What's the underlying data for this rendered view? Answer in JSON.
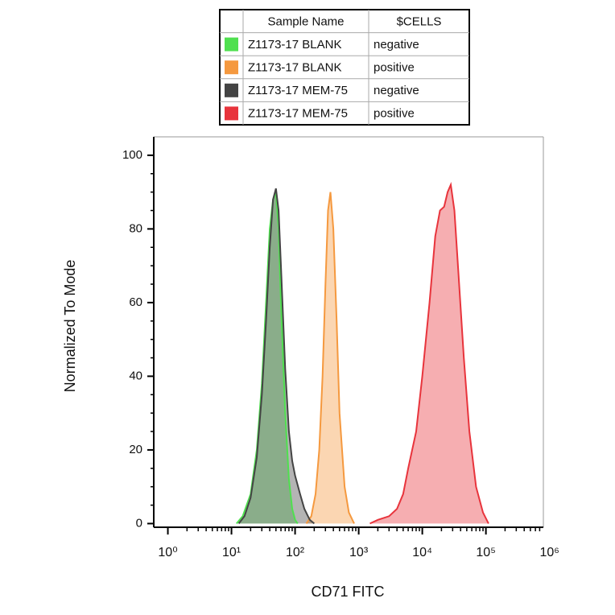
{
  "chart_data": {
    "type": "area",
    "xlabel": "CD71 FITC",
    "ylabel": "Normalized To Mode",
    "legend_headers": [
      "Sample Name",
      "$CELLS"
    ],
    "xscale": "log",
    "xlim": [
      0.6,
      800000
    ],
    "ylim": [
      -1,
      105
    ],
    "xticks": [
      {
        "value": 1,
        "label": "10⁰"
      },
      {
        "value": 10,
        "label": "10¹"
      },
      {
        "value": 100,
        "label": "10²"
      },
      {
        "value": 1000,
        "label": "10³"
      },
      {
        "value": 10000,
        "label": "10⁴"
      },
      {
        "value": 100000,
        "label": "10⁵"
      },
      {
        "value": 1000000,
        "label": "10⁶"
      }
    ],
    "yticks": [
      0,
      20,
      40,
      60,
      80,
      100
    ],
    "series": [
      {
        "name": "Z1173-17 BLANK",
        "cells": "negative",
        "color": "#4fe04f",
        "x": [
          12,
          15,
          20,
          25,
          30,
          35,
          40,
          45,
          50,
          55,
          60,
          70,
          80,
          90,
          100,
          110
        ],
        "values": [
          0,
          2,
          8,
          20,
          38,
          60,
          80,
          88,
          90,
          80,
          60,
          30,
          12,
          4,
          1,
          0
        ]
      },
      {
        "name": "Z1173-17 BLANK",
        "cells": "positive",
        "color": "#f5993f",
        "x": [
          150,
          180,
          210,
          240,
          270,
          300,
          330,
          360,
          400,
          450,
          500,
          600,
          700,
          850
        ],
        "values": [
          0,
          2,
          8,
          20,
          40,
          65,
          85,
          90,
          80,
          55,
          30,
          10,
          3,
          0
        ]
      },
      {
        "name": "Z1173-17 MEM-75",
        "cells": "negative",
        "color": "#444444",
        "x": [
          13,
          16,
          20,
          25,
          30,
          35,
          40,
          45,
          50,
          55,
          60,
          70,
          80,
          90,
          100,
          120,
          140,
          170,
          200
        ],
        "values": [
          0,
          2,
          7,
          18,
          35,
          55,
          75,
          88,
          91,
          85,
          70,
          42,
          25,
          17,
          13,
          8,
          4,
          1,
          0
        ]
      },
      {
        "name": "Z1173-17 MEM-75",
        "cells": "positive",
        "color": "#e8343c",
        "x": [
          1500,
          2000,
          3000,
          4000,
          5000,
          6000,
          8000,
          10000,
          13000,
          16000,
          19000,
          22000,
          25000,
          28000,
          32000,
          37000,
          45000,
          55000,
          70000,
          90000,
          110000
        ],
        "values": [
          0,
          1,
          2,
          4,
          8,
          15,
          25,
          40,
          60,
          78,
          85,
          86,
          90,
          92,
          85,
          68,
          45,
          25,
          10,
          3,
          0
        ]
      }
    ]
  }
}
